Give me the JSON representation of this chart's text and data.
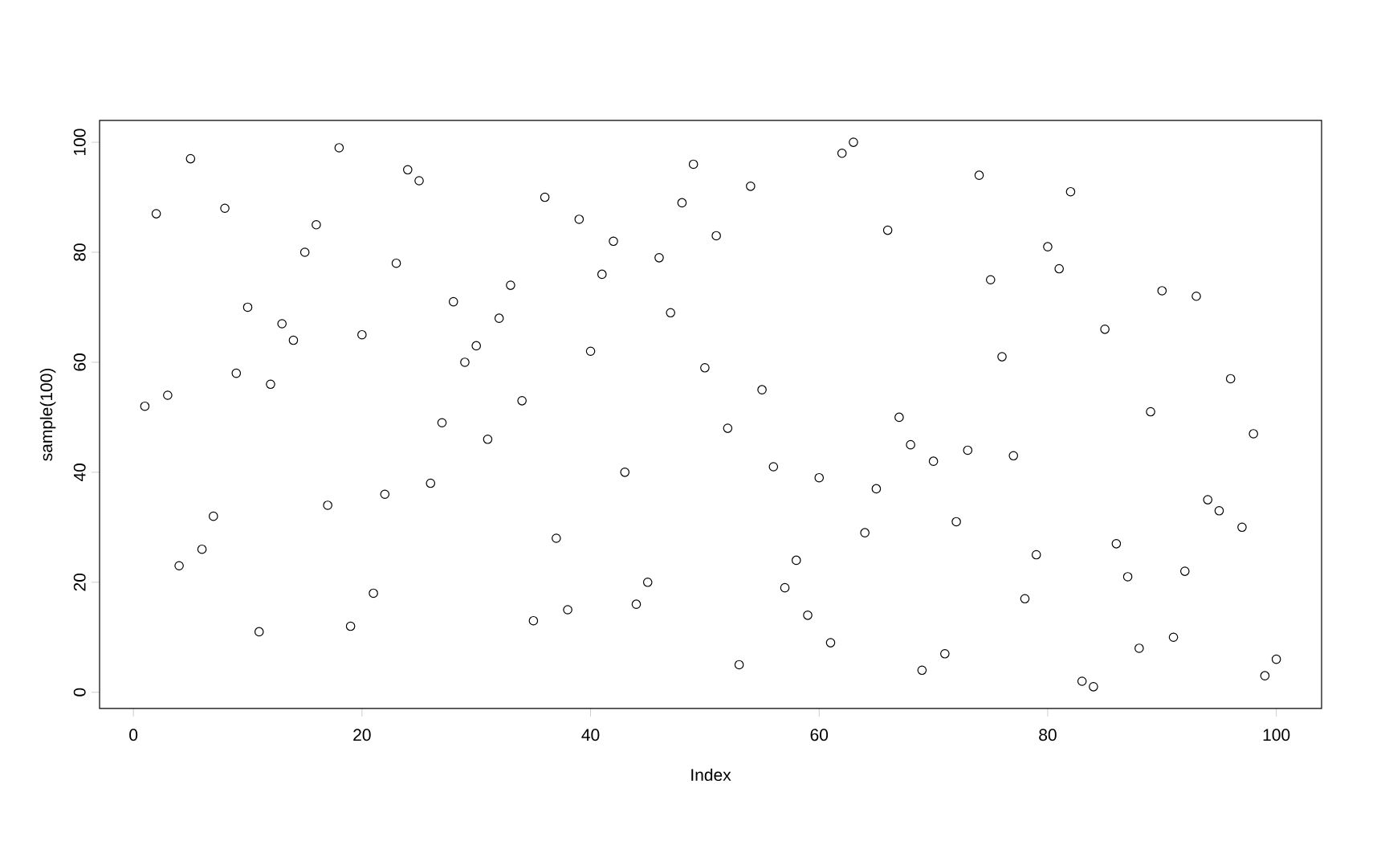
{
  "chart_data": {
    "type": "scatter",
    "xlabel": "Index",
    "ylabel": "sample(100)",
    "x": [
      1,
      2,
      3,
      4,
      5,
      6,
      7,
      8,
      9,
      10,
      11,
      12,
      13,
      14,
      15,
      16,
      17,
      18,
      19,
      20,
      21,
      22,
      23,
      24,
      25,
      26,
      27,
      28,
      29,
      30,
      31,
      32,
      33,
      34,
      35,
      36,
      37,
      38,
      39,
      40,
      41,
      42,
      43,
      44,
      45,
      46,
      47,
      48,
      49,
      50,
      51,
      52,
      53,
      54,
      55,
      56,
      57,
      58,
      59,
      60,
      61,
      62,
      63,
      64,
      65,
      66,
      67,
      68,
      69,
      70,
      71,
      72,
      73,
      74,
      75,
      76,
      77,
      78,
      79,
      80,
      81,
      82,
      83,
      84,
      85,
      86,
      87,
      88,
      89,
      90,
      91,
      92,
      93,
      94,
      95,
      96,
      97,
      98,
      99,
      100
    ],
    "values": [
      52,
      87,
      54,
      23,
      97,
      26,
      32,
      88,
      58,
      70,
      11,
      56,
      67,
      64,
      80,
      85,
      34,
      99,
      12,
      65,
      18,
      36,
      78,
      95,
      93,
      38,
      49,
      71,
      60,
      63,
      46,
      68,
      74,
      53,
      13,
      90,
      28,
      15,
      86,
      62,
      76,
      82,
      40,
      16,
      20,
      79,
      69,
      89,
      96,
      59,
      83,
      48,
      5,
      92,
      55,
      41,
      19,
      24,
      14,
      39,
      9,
      98,
      100,
      29,
      37,
      84,
      50,
      45,
      4,
      42,
      7,
      31,
      44,
      94,
      75,
      61,
      43,
      17,
      25,
      81,
      77,
      91,
      2,
      1,
      66,
      27,
      21,
      8,
      51,
      73,
      10,
      22,
      72,
      35,
      33,
      57,
      30,
      47,
      3,
      6
    ],
    "color": "#000000",
    "marker": "circle",
    "xlim": [
      -2.96,
      103.96
    ],
    "ylim": [
      -2.96,
      103.96
    ],
    "xticks": [
      0,
      20,
      40,
      60,
      80,
      100
    ],
    "yticks": [
      0,
      20,
      40,
      60,
      80,
      100
    ]
  }
}
